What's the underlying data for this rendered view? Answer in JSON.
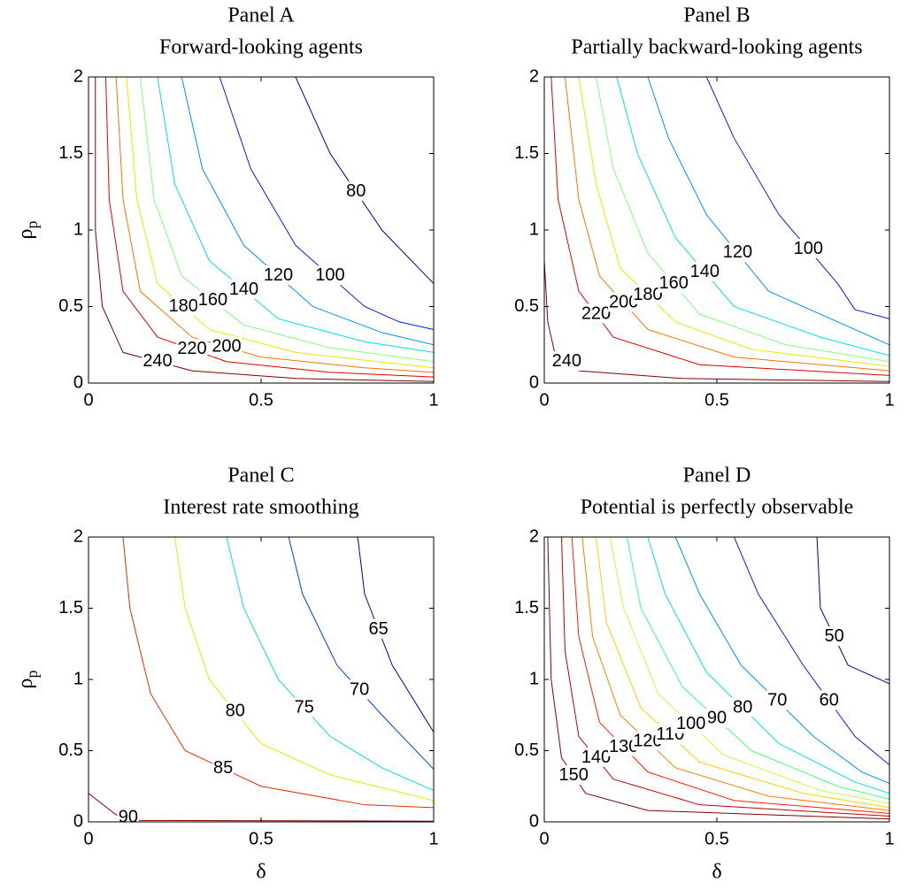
{
  "chart_data": [
    {
      "type": "contour",
      "title": "Panel A",
      "subtitle": "Forward-looking agents",
      "ylabel": "ρ",
      "ylabel_subscript": "p",
      "xlim": [
        0,
        1
      ],
      "ylim": [
        0,
        2
      ],
      "xticks": [
        0,
        0.5,
        1
      ],
      "yticks": [
        0,
        0.5,
        1,
        1.5,
        2
      ],
      "series": [
        {
          "level": 240,
          "color": "#800000",
          "x": [
            0.02,
            0.02,
            0.04,
            0.1,
            0.3,
            0.6,
            1
          ],
          "y": [
            2,
            1.0,
            0.5,
            0.2,
            0.08,
            0.03,
            0.01
          ]
        },
        {
          "level": 220,
          "color": "#e00000",
          "x": [
            0.05,
            0.06,
            0.1,
            0.2,
            0.4,
            0.7,
            1
          ],
          "y": [
            2,
            1.2,
            0.6,
            0.3,
            0.14,
            0.07,
            0.04
          ]
        },
        {
          "level": 200,
          "color": "#ff7000",
          "x": [
            0.08,
            0.1,
            0.15,
            0.3,
            0.5,
            0.8,
            1
          ],
          "y": [
            2,
            1.2,
            0.6,
            0.3,
            0.17,
            0.1,
            0.07
          ]
        },
        {
          "level": 180,
          "color": "#e8e800",
          "x": [
            0.11,
            0.14,
            0.2,
            0.35,
            0.6,
            1
          ],
          "y": [
            2,
            1.2,
            0.65,
            0.35,
            0.2,
            0.1
          ]
        },
        {
          "level": 160,
          "color": "#80ff80",
          "x": [
            0.15,
            0.19,
            0.27,
            0.45,
            0.7,
            1
          ],
          "y": [
            2,
            1.2,
            0.7,
            0.38,
            0.23,
            0.14
          ]
        },
        {
          "level": 140,
          "color": "#00e0e0",
          "x": [
            0.2,
            0.25,
            0.35,
            0.55,
            0.8,
            1
          ],
          "y": [
            2,
            1.3,
            0.8,
            0.42,
            0.27,
            0.2
          ]
        },
        {
          "level": 120,
          "color": "#0090ff",
          "x": [
            0.27,
            0.33,
            0.45,
            0.65,
            0.85,
            1
          ],
          "y": [
            2,
            1.4,
            0.9,
            0.5,
            0.33,
            0.25
          ]
        },
        {
          "level": 100,
          "color": "#0020e0",
          "x": [
            0.38,
            0.47,
            0.6,
            0.8,
            0.9,
            1
          ],
          "y": [
            2,
            1.4,
            0.9,
            0.5,
            0.4,
            0.35
          ]
        },
        {
          "level": 80,
          "color": "#000090",
          "x": [
            0.6,
            0.7,
            0.85,
            1
          ],
          "y": [
            2,
            1.5,
            1.0,
            0.65
          ]
        }
      ]
    },
    {
      "type": "contour",
      "title": "Panel B",
      "subtitle": "Partially backward-looking agents",
      "xlim": [
        0,
        1
      ],
      "ylim": [
        0,
        2
      ],
      "xticks": [
        0,
        0.5,
        1
      ],
      "yticks": [
        0,
        0.5,
        1,
        1.5,
        2
      ],
      "series": [
        {
          "level": 240,
          "color": "#800000",
          "x": [
            0,
            0.01,
            0.03,
            0.1,
            0.4,
            1
          ],
          "y": [
            0.8,
            0.4,
            0.2,
            0.08,
            0.03,
            0.01
          ]
        },
        {
          "level": 220,
          "color": "#e00000",
          "x": [
            0.02,
            0.04,
            0.1,
            0.2,
            0.45,
            1
          ],
          "y": [
            2,
            1.2,
            0.6,
            0.3,
            0.12,
            0.05
          ]
        },
        {
          "level": 200,
          "color": "#ff7000",
          "x": [
            0.06,
            0.1,
            0.16,
            0.3,
            0.55,
            1
          ],
          "y": [
            2,
            1.2,
            0.7,
            0.35,
            0.17,
            0.08
          ]
        },
        {
          "level": 180,
          "color": "#e8e800",
          "x": [
            0.1,
            0.15,
            0.22,
            0.38,
            0.6,
            1
          ],
          "y": [
            2,
            1.3,
            0.75,
            0.4,
            0.22,
            0.11
          ]
        },
        {
          "level": 160,
          "color": "#80ff80",
          "x": [
            0.15,
            0.2,
            0.3,
            0.45,
            0.7,
            1
          ],
          "y": [
            2,
            1.4,
            0.85,
            0.45,
            0.25,
            0.14
          ]
        },
        {
          "level": 140,
          "color": "#00e0e0",
          "x": [
            0.21,
            0.27,
            0.38,
            0.55,
            0.8,
            1
          ],
          "y": [
            2,
            1.5,
            0.95,
            0.5,
            0.3,
            0.18
          ]
        },
        {
          "level": 120,
          "color": "#0090ff",
          "x": [
            0.3,
            0.36,
            0.47,
            0.65,
            0.85,
            1
          ],
          "y": [
            2,
            1.6,
            1.1,
            0.6,
            0.4,
            0.25
          ]
        },
        {
          "level": 100,
          "color": "#0020e0",
          "x": [
            0.47,
            0.55,
            0.68,
            0.85,
            0.9,
            1
          ],
          "y": [
            2,
            1.6,
            1.1,
            0.65,
            0.48,
            0.42
          ]
        }
      ]
    },
    {
      "type": "contour",
      "title": "Panel C",
      "subtitle": "Interest rate smoothing",
      "xlabel": "δ",
      "ylabel": "ρ",
      "ylabel_subscript": "p",
      "xlim": [
        0,
        1
      ],
      "ylim": [
        0,
        2
      ],
      "xticks": [
        0,
        0.5,
        1
      ],
      "yticks": [
        0,
        0.5,
        1,
        1.5,
        2
      ],
      "series": [
        {
          "level": 90,
          "color": "#800000",
          "x": [
            0,
            0.08,
            0.15,
            1
          ],
          "y": [
            0.2,
            0.05,
            0.01,
            0.005
          ]
        },
        {
          "level": 85,
          "color": "#e03000",
          "x": [
            0.1,
            0.12,
            0.18,
            0.28,
            0.5,
            0.8,
            1
          ],
          "y": [
            2,
            1.5,
            0.9,
            0.5,
            0.25,
            0.12,
            0.1
          ]
        },
        {
          "level": 80,
          "color": "#e8e800",
          "x": [
            0.25,
            0.28,
            0.35,
            0.5,
            0.7,
            1
          ],
          "y": [
            2,
            1.5,
            1.0,
            0.55,
            0.33,
            0.15
          ]
        },
        {
          "level": 75,
          "color": "#00e0e0",
          "x": [
            0.4,
            0.45,
            0.55,
            0.7,
            0.85,
            1
          ],
          "y": [
            2,
            1.5,
            1.0,
            0.6,
            0.38,
            0.22
          ]
        },
        {
          "level": 70,
          "color": "#0040f0",
          "x": [
            0.58,
            0.62,
            0.72,
            0.85,
            1
          ],
          "y": [
            2,
            1.6,
            1.1,
            0.75,
            0.37
          ]
        },
        {
          "level": 65,
          "color": "#000090",
          "x": [
            0.78,
            0.8,
            0.88,
            1
          ],
          "y": [
            2,
            1.6,
            1.1,
            0.63
          ]
        }
      ]
    },
    {
      "type": "contour",
      "title": "Panel D",
      "subtitle": "Potential is perfectly observable",
      "xlabel": "δ",
      "xlim": [
        0,
        1
      ],
      "ylim": [
        0,
        2
      ],
      "xticks": [
        0,
        0.5,
        1
      ],
      "yticks": [
        0,
        0.5,
        1,
        1.5,
        2
      ],
      "series": [
        {
          "level": 150,
          "color": "#800000",
          "x": [
            0.01,
            0.02,
            0.05,
            0.12,
            0.3,
            1
          ],
          "y": [
            2,
            1.0,
            0.45,
            0.2,
            0.08,
            0.02
          ]
        },
        {
          "level": 140,
          "color": "#c00000",
          "x": [
            0.05,
            0.06,
            0.1,
            0.2,
            0.45,
            1
          ],
          "y": [
            2,
            1.2,
            0.6,
            0.3,
            0.12,
            0.04
          ]
        },
        {
          "level": 130,
          "color": "#ff2000",
          "x": [
            0.08,
            0.1,
            0.16,
            0.3,
            0.55,
            1
          ],
          "y": [
            2,
            1.3,
            0.7,
            0.35,
            0.15,
            0.06
          ]
        },
        {
          "level": 120,
          "color": "#ff8000",
          "x": [
            0.11,
            0.14,
            0.22,
            0.38,
            0.65,
            1
          ],
          "y": [
            2,
            1.3,
            0.75,
            0.38,
            0.18,
            0.08
          ]
        },
        {
          "level": 110,
          "color": "#ffd000",
          "x": [
            0.15,
            0.18,
            0.28,
            0.45,
            0.75,
            1
          ],
          "y": [
            2,
            1.4,
            0.8,
            0.42,
            0.2,
            0.1
          ]
        },
        {
          "level": 100,
          "color": "#c0ff40",
          "x": [
            0.19,
            0.23,
            0.33,
            0.52,
            0.8,
            1
          ],
          "y": [
            2,
            1.5,
            0.9,
            0.47,
            0.22,
            0.13
          ]
        },
        {
          "level": 90,
          "color": "#40ff80",
          "x": [
            0.24,
            0.28,
            0.4,
            0.6,
            0.85,
            1
          ],
          "y": [
            2,
            1.5,
            0.95,
            0.5,
            0.25,
            0.16
          ]
        },
        {
          "level": 80,
          "color": "#00e0e0",
          "x": [
            0.3,
            0.35,
            0.47,
            0.68,
            0.9,
            1
          ],
          "y": [
            2,
            1.6,
            1.05,
            0.55,
            0.28,
            0.2
          ]
        },
        {
          "level": 70,
          "color": "#0090ff",
          "x": [
            0.38,
            0.45,
            0.57,
            0.78,
            0.92,
            1
          ],
          "y": [
            2,
            1.6,
            1.1,
            0.6,
            0.35,
            0.27
          ]
        },
        {
          "level": 60,
          "color": "#0020e0",
          "x": [
            0.55,
            0.62,
            0.75,
            0.9,
            1
          ],
          "y": [
            2,
            1.6,
            1.1,
            0.6,
            0.4
          ]
        },
        {
          "level": 50,
          "color": "#000090",
          "x": [
            0.79,
            0.8,
            0.88,
            1
          ],
          "y": [
            2,
            1.5,
            1.1,
            0.97
          ]
        }
      ]
    }
  ]
}
